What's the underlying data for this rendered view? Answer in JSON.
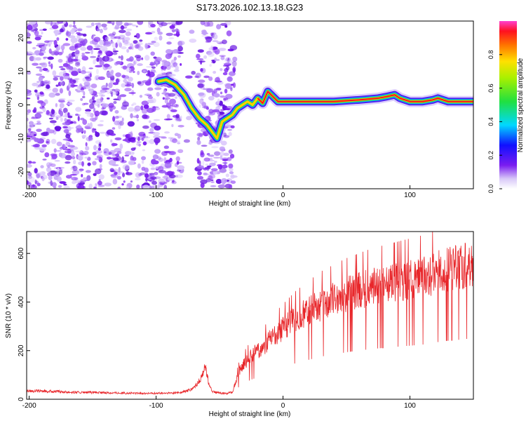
{
  "title": "S173.2026.102.13.18.G23",
  "chart_data": [
    {
      "type": "heatmap",
      "name": "spectrogram",
      "xlabel": "Height of straight line (km)",
      "ylabel": "Frequency (Hz)",
      "xlim": [
        -202,
        150
      ],
      "ylim": [
        -25,
        25
      ],
      "x_ticks": [
        -200,
        -100,
        0,
        100
      ],
      "y_ticks": [
        -20,
        -10,
        0,
        10,
        20
      ],
      "colorbar": {
        "label": "Normalized spectral amplitude",
        "range": [
          0,
          1
        ],
        "ticks": [
          0.0,
          0.2,
          0.4,
          0.6,
          0.8
        ],
        "tick_labels": [
          "0.0",
          "0.2",
          "0.4",
          "0.6",
          "0.8"
        ]
      },
      "ridge": {
        "x": [
          -98,
          -92,
          -85,
          -78,
          -72,
          -66,
          -60,
          -56,
          -52,
          -48,
          -44,
          -40,
          -36,
          -32,
          -28,
          -24,
          -20,
          -16,
          -12,
          -8,
          -4,
          0,
          20,
          40,
          60,
          75,
          82,
          88,
          92,
          100,
          110,
          118,
          122,
          130,
          150
        ],
        "freq": [
          7,
          7.5,
          6,
          3,
          -1,
          -4,
          -6,
          -8,
          -10,
          -5,
          -4,
          -3,
          -1,
          0,
          1,
          0,
          2,
          0.5,
          4,
          2.5,
          1,
          1,
          1,
          1,
          1.5,
          2,
          2.5,
          3,
          2,
          1,
          1,
          1.5,
          2,
          1,
          1
        ]
      },
      "noise_region": {
        "x": [
          -202,
          -38
        ],
        "freq": [
          -25,
          25
        ]
      }
    },
    {
      "type": "line",
      "name": "snr",
      "xlabel": "Height of straight line (km)",
      "ylabel": "SNR (10 * v/v)",
      "xlim": [
        -202,
        150
      ],
      "ylim": [
        0,
        690
      ],
      "x_ticks": [
        -200,
        -100,
        0,
        100
      ],
      "y_ticks": [
        0,
        200,
        400,
        600
      ],
      "series": [
        {
          "name": "SNR",
          "color": "#e8262a",
          "x": [
            -202,
            -180,
            -160,
            -140,
            -120,
            -100,
            -90,
            -80,
            -72,
            -68,
            -64,
            -62,
            -60,
            -58,
            -55,
            -50,
            -45,
            -40,
            -38,
            -35,
            -30,
            -25,
            -20,
            -15,
            -10,
            -5,
            0,
            10,
            20,
            30,
            40,
            50,
            60,
            70,
            80,
            90,
            100,
            110,
            120,
            130,
            140,
            150
          ],
          "mean": [
            35,
            32,
            28,
            27,
            25,
            24,
            25,
            28,
            40,
            60,
            90,
            140,
            110,
            50,
            30,
            25,
            24,
            28,
            60,
            110,
            150,
            180,
            200,
            220,
            250,
            270,
            290,
            330,
            360,
            390,
            410,
            430,
            445,
            460,
            470,
            480,
            490,
            500,
            520,
            535,
            545,
            560
          ]
        }
      ]
    }
  ]
}
